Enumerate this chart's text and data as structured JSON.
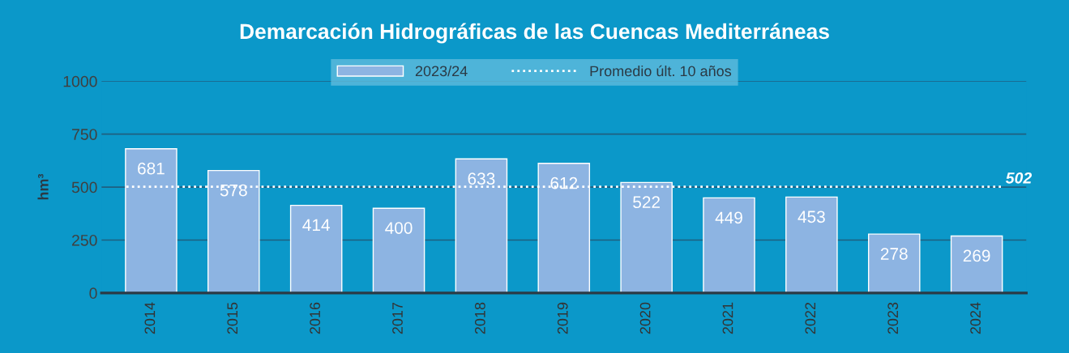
{
  "chart_data": {
    "type": "bar",
    "title": "Demarcación Hidrográficas de las Cuencas Mediterráneas",
    "ylabel": "hm³",
    "categories": [
      "2014",
      "2015",
      "2016",
      "2017",
      "2018",
      "2019",
      "2020",
      "2021",
      "2022",
      "2023",
      "2024"
    ],
    "series": [
      {
        "name": "2023/24",
        "color": "#8db4e2",
        "values": [
          681,
          578,
          414,
          400,
          633,
          612,
          522,
          449,
          453,
          278,
          269
        ]
      }
    ],
    "data_labels": true,
    "ylim": [
      0,
      1000
    ],
    "yticks": [
      0,
      250,
      500,
      750,
      1000
    ],
    "ref_lines": [
      {
        "axis": "y",
        "value": 502,
        "label": "Promedio últ. 10 años",
        "color": "#ffffff",
        "line_style": "dotted"
      }
    ],
    "annotations": [
      {
        "text": "502",
        "x": "2024",
        "y": 502
      }
    ],
    "grid": "y",
    "legend": "top"
  }
}
